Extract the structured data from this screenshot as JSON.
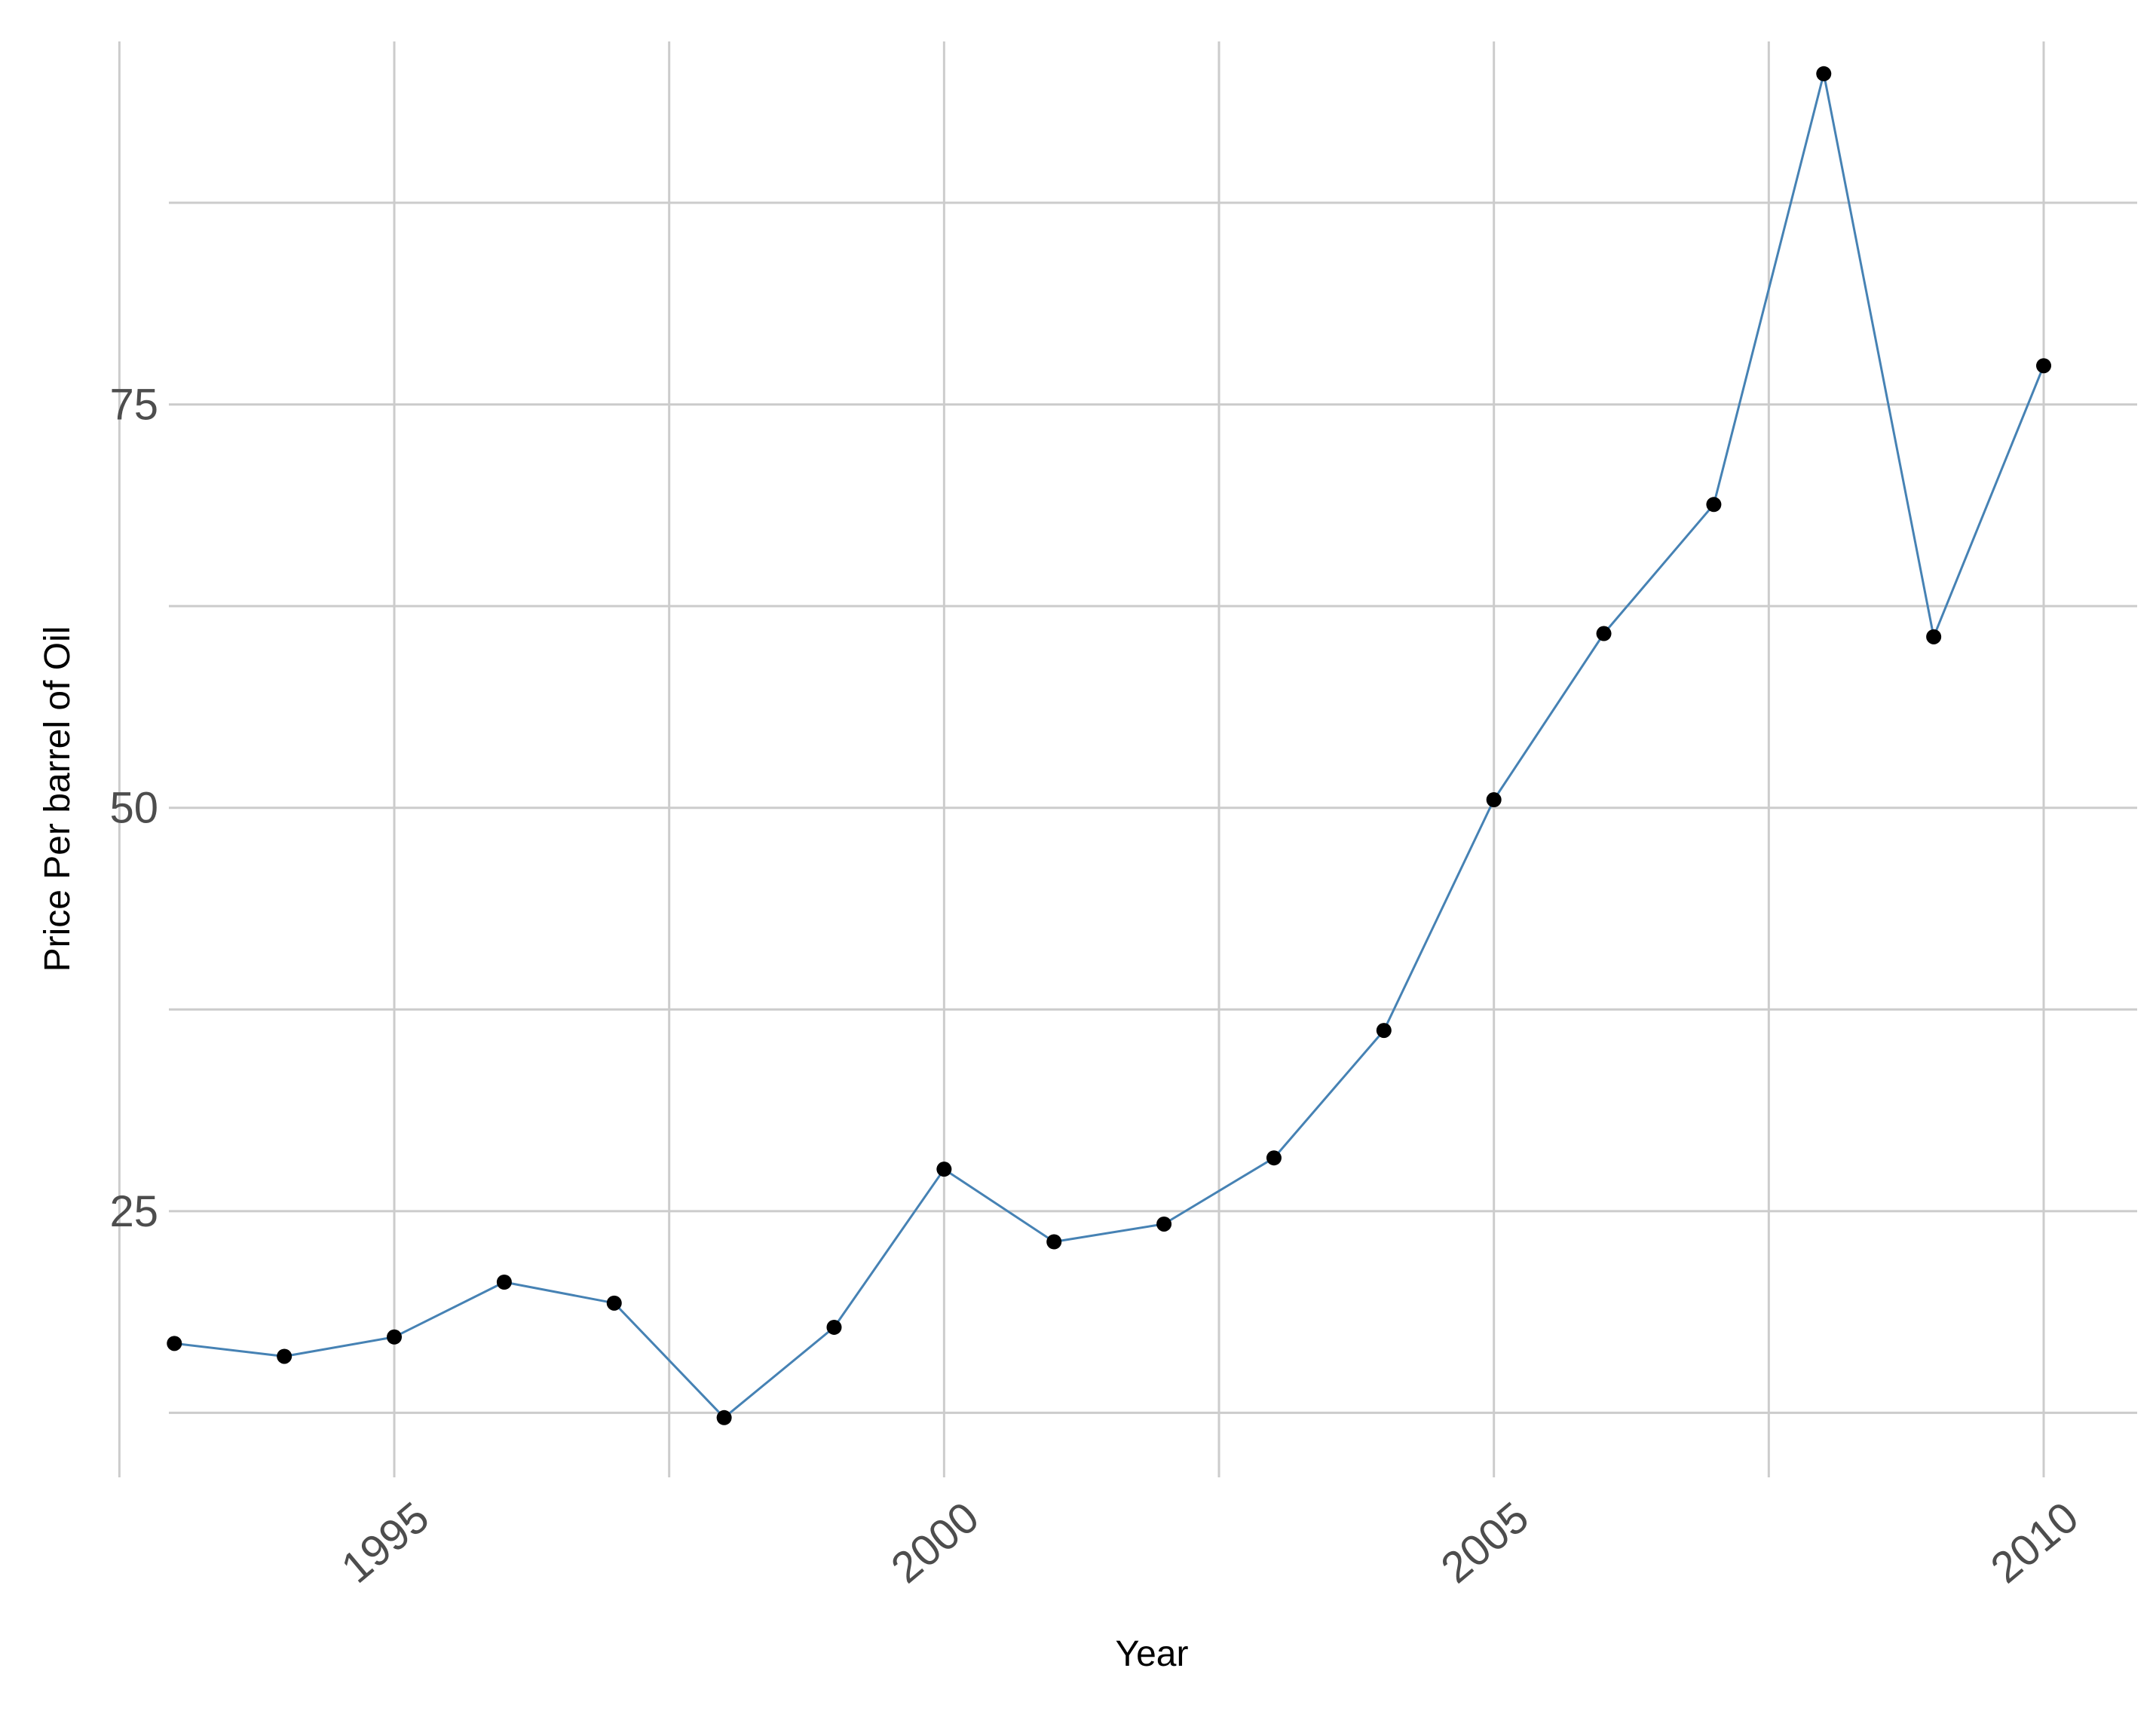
{
  "chart_data": {
    "type": "line",
    "title": "",
    "xlabel": "Year",
    "ylabel": "Price Per barrel of Oil",
    "xlim": [
      1992.95,
      2010.85
    ],
    "ylim": [
      8.5,
      97.5
    ],
    "x_ticks": [
      1995,
      2000,
      2005,
      2010
    ],
    "x_tick_labels": [
      "1995",
      "2000",
      "2005",
      "2010"
    ],
    "y_ticks": [
      25,
      50,
      75
    ],
    "y_tick_labels": [
      "25",
      "50",
      "75"
    ],
    "x_minor_grid": [
      1992.5,
      1997.5,
      2002.5,
      2007.5
    ],
    "y_minor_grid": [
      12.5,
      37.5,
      62.5,
      87.5
    ],
    "grid": true,
    "legend": "none",
    "line_color": "#4682b4",
    "point_color": "#000000",
    "grid_color": "#cccccc",
    "series": [
      {
        "x": [
          1993,
          1994,
          1995,
          1996,
          1997,
          1998,
          1999,
          2000,
          2001,
          2002,
          2003,
          2004,
          2005,
          2006,
          2007,
          2008,
          2009,
          2010
        ],
        "values": [
          16.8,
          16.0,
          17.2,
          20.6,
          19.3,
          12.2,
          17.8,
          27.6,
          23.1,
          24.2,
          28.3,
          36.2,
          50.5,
          60.8,
          68.8,
          95.5,
          60.6,
          77.4
        ]
      }
    ]
  }
}
